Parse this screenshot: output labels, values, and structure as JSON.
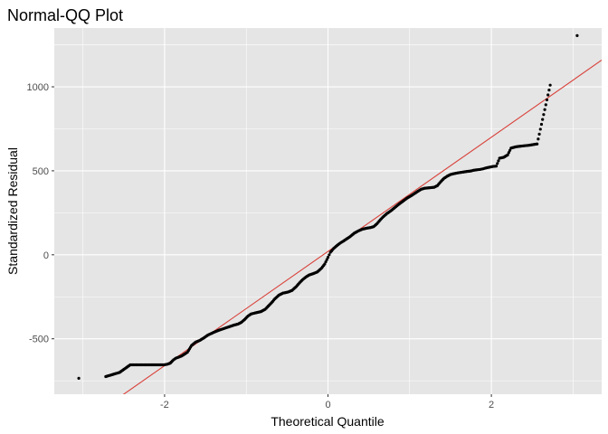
{
  "chart_data": {
    "type": "scatter",
    "title": "Normal-QQ Plot",
    "xlabel": "Theoretical Quantile",
    "ylabel": "Standardized Residual",
    "xlim": [
      -3.35,
      3.35
    ],
    "ylim": [
      -830,
      1350
    ],
    "x_ticks": [
      -2,
      0,
      2
    ],
    "x_tick_labels": [
      "-2",
      "0",
      "2"
    ],
    "y_ticks": [
      -500,
      0,
      500,
      1000
    ],
    "y_tick_labels": [
      "-500",
      "0",
      "500",
      "1000"
    ],
    "grid": true,
    "panel_background": "#E5E5E5",
    "grid_color": "#FFFFFF",
    "point_color": "#000000",
    "reference_line": {
      "intercept": 20,
      "slope": 340,
      "color": "#D9413A"
    },
    "quantile_points": [
      [
        -3.05,
        -735
      ],
      [
        -2.72,
        -725
      ],
      [
        -2.55,
        -700
      ],
      [
        -2.42,
        -655
      ],
      [
        -2.35,
        -655
      ],
      [
        -2.28,
        -655
      ],
      [
        -2.21,
        -655
      ],
      [
        -2.15,
        -655
      ],
      [
        -2.1,
        -655
      ],
      [
        -2.05,
        -655
      ],
      [
        -2.01,
        -655
      ],
      [
        -1.97,
        -652
      ],
      [
        -1.93,
        -645
      ],
      [
        -1.89,
        -625
      ],
      [
        -1.86,
        -615
      ],
      [
        -1.82,
        -608
      ],
      [
        -1.79,
        -602
      ],
      [
        -1.72,
        -580
      ],
      [
        -1.67,
        -540
      ],
      [
        -1.62,
        -520
      ],
      [
        -1.57,
        -510
      ],
      [
        -1.52,
        -495
      ],
      [
        -1.47,
        -478
      ],
      [
        -1.4,
        -462
      ],
      [
        -1.34,
        -450
      ],
      [
        -1.28,
        -440
      ],
      [
        -1.22,
        -430
      ],
      [
        -1.16,
        -420
      ],
      [
        -1.1,
        -412
      ],
      [
        -1.06,
        -402
      ],
      [
        -1.02,
        -385
      ],
      [
        -0.98,
        -365
      ],
      [
        -0.94,
        -352
      ],
      [
        -0.88,
        -345
      ],
      [
        -0.82,
        -338
      ],
      [
        -0.77,
        -325
      ],
      [
        -0.73,
        -305
      ],
      [
        -0.69,
        -285
      ],
      [
        -0.65,
        -262
      ],
      [
        -0.6,
        -240
      ],
      [
        -0.55,
        -228
      ],
      [
        -0.49,
        -222
      ],
      [
        -0.44,
        -212
      ],
      [
        -0.39,
        -190
      ],
      [
        -0.35,
        -168
      ],
      [
        -0.31,
        -148
      ],
      [
        -0.27,
        -132
      ],
      [
        -0.23,
        -120
      ],
      [
        -0.18,
        -112
      ],
      [
        -0.13,
        -102
      ],
      [
        -0.08,
        -80
      ],
      [
        -0.04,
        -55
      ],
      [
        0.0,
        -15
      ],
      [
        0.03,
        15
      ],
      [
        0.07,
        38
      ],
      [
        0.11,
        55
      ],
      [
        0.15,
        70
      ],
      [
        0.19,
        82
      ],
      [
        0.23,
        95
      ],
      [
        0.27,
        108
      ],
      [
        0.32,
        128
      ],
      [
        0.37,
        142
      ],
      [
        0.42,
        152
      ],
      [
        0.47,
        158
      ],
      [
        0.52,
        162
      ],
      [
        0.56,
        168
      ],
      [
        0.6,
        185
      ],
      [
        0.64,
        208
      ],
      [
        0.68,
        228
      ],
      [
        0.72,
        245
      ],
      [
        0.77,
        262
      ],
      [
        0.82,
        282
      ],
      [
        0.87,
        302
      ],
      [
        0.92,
        320
      ],
      [
        0.97,
        338
      ],
      [
        1.02,
        352
      ],
      [
        1.06,
        365
      ],
      [
        1.1,
        378
      ],
      [
        1.14,
        390
      ],
      [
        1.18,
        396
      ],
      [
        1.22,
        398
      ],
      [
        1.26,
        400
      ],
      [
        1.3,
        402
      ],
      [
        1.34,
        412
      ],
      [
        1.38,
        435
      ],
      [
        1.42,
        455
      ],
      [
        1.46,
        468
      ],
      [
        1.5,
        478
      ],
      [
        1.54,
        483
      ],
      [
        1.58,
        487
      ],
      [
        1.62,
        490
      ],
      [
        1.66,
        493
      ],
      [
        1.7,
        496
      ],
      [
        1.74,
        498
      ],
      [
        1.78,
        503
      ],
      [
        1.82,
        506
      ],
      [
        1.86,
        508
      ],
      [
        1.9,
        512
      ],
      [
        1.94,
        518
      ],
      [
        1.98,
        522
      ],
      [
        2.02,
        526
      ],
      [
        2.06,
        528
      ],
      [
        2.1,
        575
      ],
      [
        2.15,
        580
      ],
      [
        2.2,
        595
      ],
      [
        2.24,
        635
      ],
      [
        2.3,
        643
      ],
      [
        2.38,
        648
      ],
      [
        2.46,
        652
      ],
      [
        2.56,
        660
      ],
      [
        2.72,
        1010
      ],
      [
        3.05,
        1305
      ]
    ]
  }
}
